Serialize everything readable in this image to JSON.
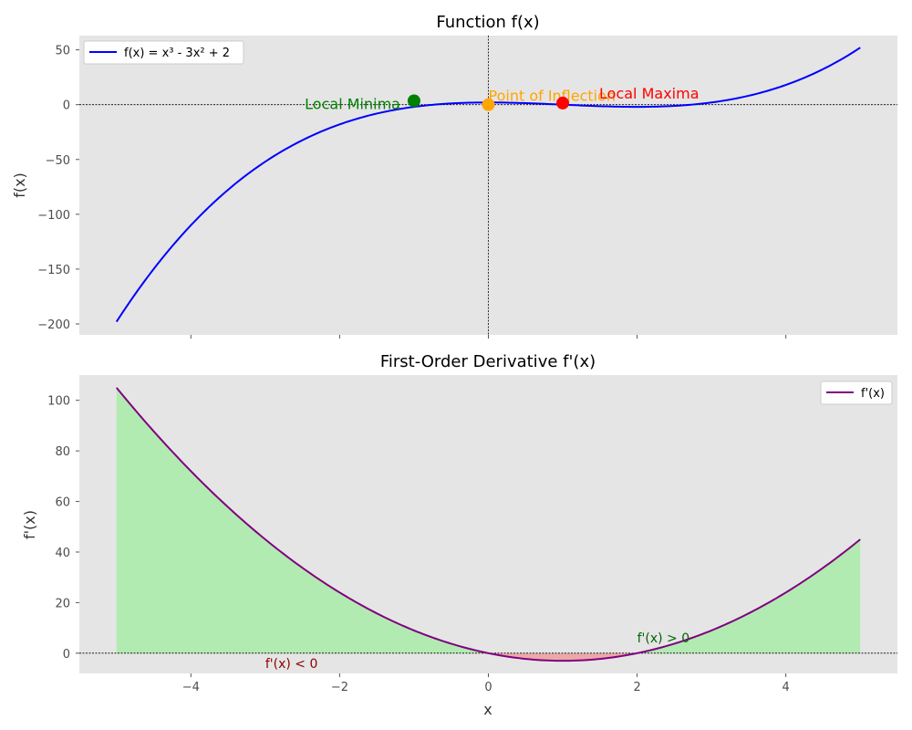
{
  "chart_data": [
    {
      "type": "line",
      "title": "Function f(x)",
      "xlabel": "",
      "ylabel": "f(x)",
      "xlim": [
        -5.5,
        5.5
      ],
      "ylim": [
        -210,
        63
      ],
      "xticks": [
        -4,
        -2,
        0,
        2,
        4
      ],
      "yticks": [
        50,
        0,
        -50,
        -100,
        -150,
        -200
      ],
      "ytick_labels": [
        "50",
        "0",
        "−50",
        "−100",
        "−150",
        "−200"
      ],
      "grid": false,
      "legend_position": "upper-left",
      "series": [
        {
          "name": "f(x) = x³ - 3x² + 2",
          "color": "#0000ff",
          "x": [
            -5,
            -4.5,
            -4,
            -3.5,
            -3,
            -2.5,
            -2,
            -1.5,
            -1,
            -0.5,
            0,
            0.5,
            1,
            1.5,
            2,
            2.5,
            3,
            3.5,
            4,
            4.5,
            5
          ],
          "y": [
            -198,
            -160,
            -126,
            -96,
            -70,
            -48,
            -30,
            -16,
            -6,
            0,
            2,
            0,
            -4,
            -8,
            -10,
            -8,
            2,
            22,
            18,
            33,
            52
          ]
        }
      ],
      "points": [
        {
          "label": "Local Minima",
          "x": -1,
          "y": 3.5,
          "color": "#008000"
        },
        {
          "label": "Point of Inflection",
          "x": 0,
          "y": 0,
          "color": "#ffa500"
        },
        {
          "label": "Local Maxima",
          "x": 1,
          "y": 1.5,
          "color": "#ff0000"
        }
      ],
      "reference_lines": {
        "h": 0,
        "v": 0
      }
    },
    {
      "type": "area",
      "title": "First-Order Derivative f'(x)",
      "xlabel": "x",
      "ylabel": "f'(x)",
      "xlim": [
        -5.5,
        5.5
      ],
      "ylim": [
        -8,
        110
      ],
      "xticks": [
        -4,
        -2,
        0,
        2,
        4
      ],
      "xtick_labels": [
        "−4",
        "−2",
        "0",
        "2",
        "4"
      ],
      "yticks": [
        0,
        20,
        40,
        60,
        80,
        100
      ],
      "grid": false,
      "legend_position": "upper-right",
      "series": [
        {
          "name": "f'(x)",
          "color": "#800080",
          "x": [
            -5,
            -4.5,
            -4,
            -3.5,
            -3,
            -2.5,
            -2,
            -1.5,
            -1,
            -0.5,
            0,
            0.5,
            1,
            1.5,
            2,
            2.5,
            3,
            3.5,
            4,
            4.5,
            5
          ],
          "y": [
            104.5,
            90,
            75,
            62,
            50,
            39,
            29,
            20,
            12,
            5.5,
            0,
            -2.3,
            -3,
            -2.3,
            0,
            4.5,
            10,
            16.5,
            24,
            33.5,
            45
          ]
        }
      ],
      "fills": {
        "positive_color": "#90ee90",
        "negative_color": "#f08080"
      },
      "annotations": [
        {
          "text": "f'(x) < 0",
          "x": -3,
          "y": -4,
          "color": "#8b0000"
        },
        {
          "text": "f'(x) > 0",
          "x": 2,
          "y": 6,
          "color": "#006400"
        }
      ],
      "reference_lines": {
        "h": 0
      }
    }
  ]
}
